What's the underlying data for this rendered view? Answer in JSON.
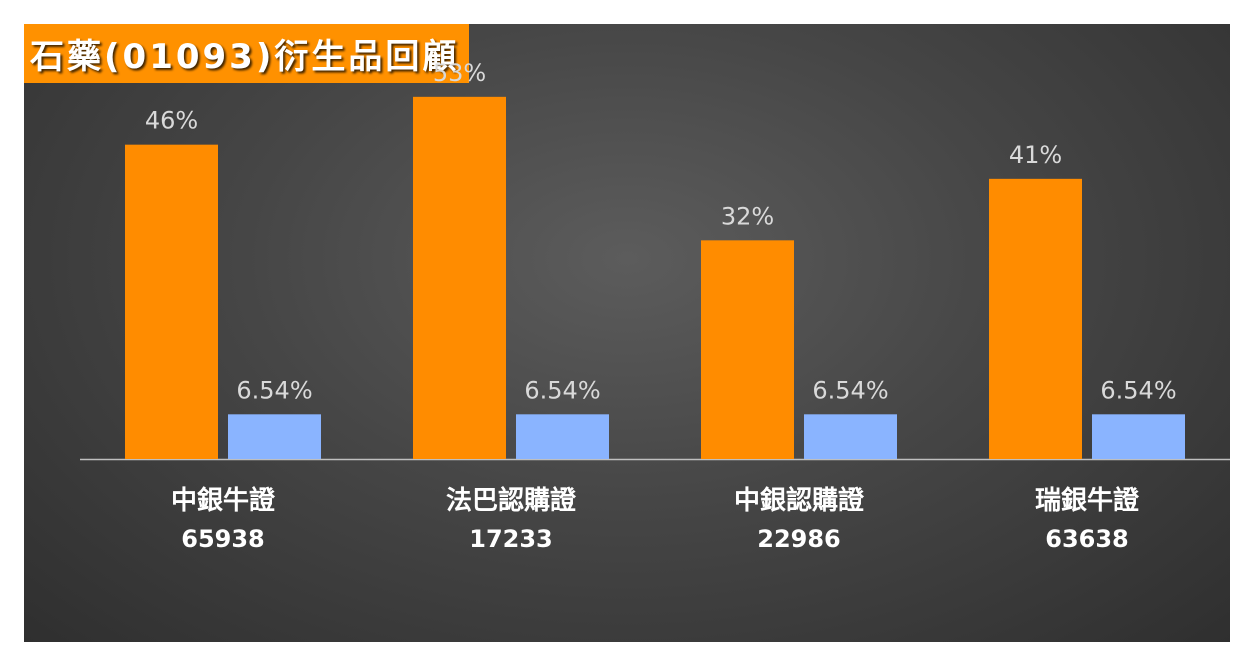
{
  "title": "石藥(01093)衍生品回顧",
  "chart_data": {
    "type": "bar",
    "categories": [
      {
        "name": "中銀牛證",
        "code": "65938"
      },
      {
        "name": "法巴認購證",
        "code": "17233"
      },
      {
        "name": "中銀認購證",
        "code": "22986"
      },
      {
        "name": "瑞銀牛證",
        "code": "63638"
      }
    ],
    "series": [
      {
        "values": [
          46,
          53,
          32,
          41
        ],
        "labels": [
          "46%",
          "53%",
          "32%",
          "41%"
        ],
        "color": "#ff8c00"
      },
      {
        "values": [
          6.54,
          6.54,
          6.54,
          6.54
        ],
        "labels": [
          "6.54%",
          "6.54%",
          "6.54%",
          "6.54%"
        ],
        "color": "#8ab4ff"
      }
    ],
    "ylim": [
      0,
      60
    ],
    "grid": false,
    "legend": "none"
  }
}
